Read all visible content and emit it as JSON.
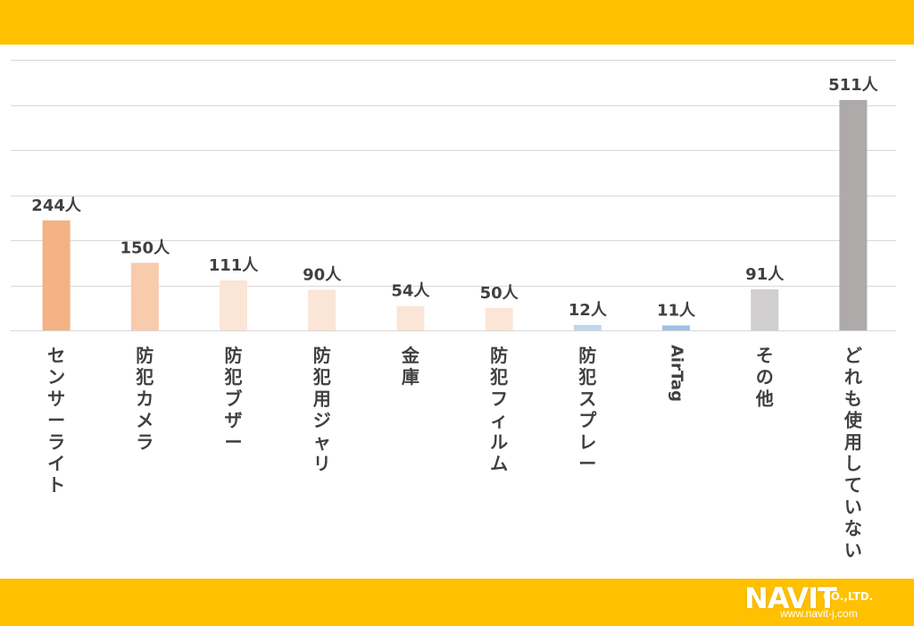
{
  "colors": {
    "band": "#FFC000",
    "grid": "#d9d9d9",
    "label": "#404040",
    "logo": "#ffffff"
  },
  "logo": {
    "name": "NAVIT",
    "suffix": "CO.,LTD.",
    "url": "www.navit-j.com"
  },
  "chart_data": {
    "type": "bar",
    "title": "",
    "xlabel": "",
    "ylabel": "",
    "unit": "人",
    "ylim": [
      0,
      600
    ],
    "yticks": [
      0,
      100,
      200,
      300,
      400,
      500,
      600
    ],
    "grid": true,
    "legend": "none",
    "categories": [
      "センサーライト",
      "防犯カメラ",
      "防犯ブザー",
      "防犯用ジャリ",
      "金庫",
      "防犯フィルム",
      "防犯スプレー",
      "AirTag",
      "その他",
      "どれも使用していない"
    ],
    "values": [
      244,
      150,
      111,
      90,
      54,
      50,
      12,
      11,
      91,
      511
    ],
    "value_labels": [
      "244人",
      "150人",
      "111人",
      "90人",
      "54人",
      "50人",
      "12人",
      "11人",
      "91人",
      "511人"
    ],
    "bar_colors": [
      "#F4B183",
      "#F8CBAD",
      "#FBE5D6",
      "#FBE5D6",
      "#FBE5D6",
      "#FBE5D6",
      "#BDD7EE",
      "#9DC3E6",
      "#D0CECE",
      "#AEAAAA"
    ]
  }
}
